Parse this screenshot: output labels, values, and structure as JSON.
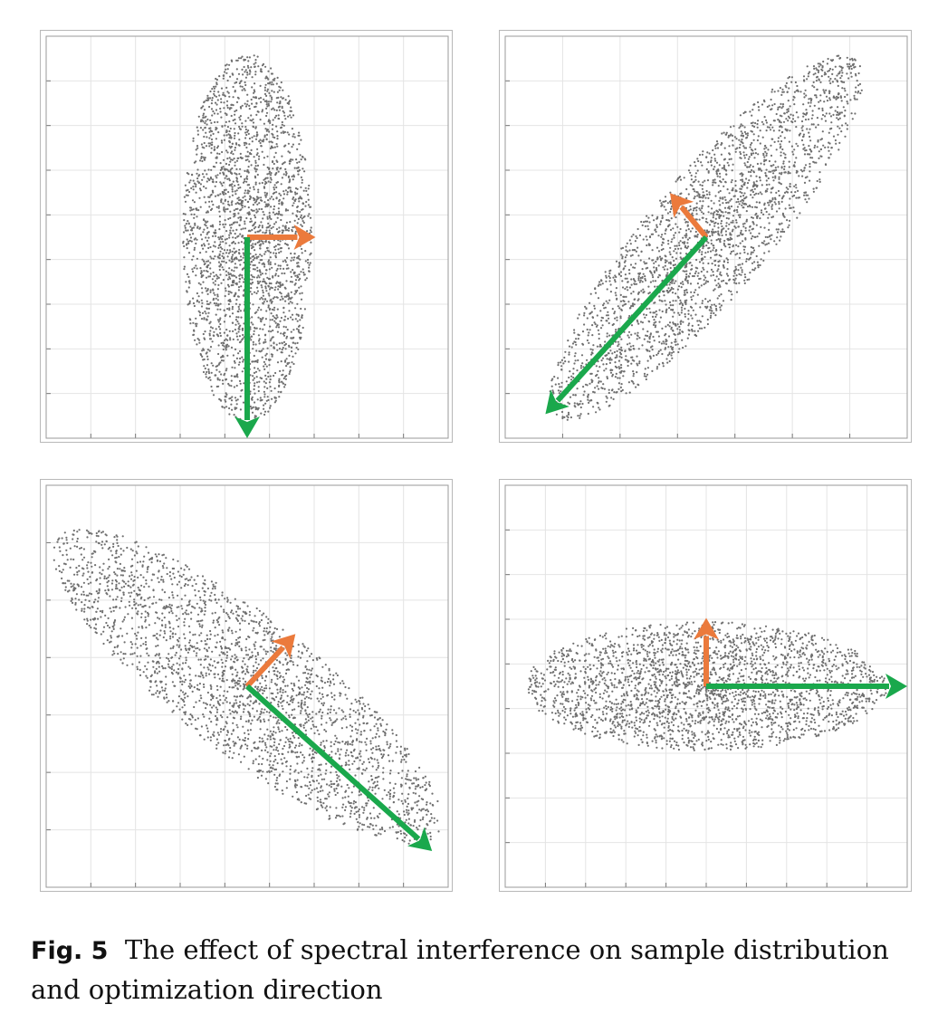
{
  "chart_data": [
    {
      "type": "scatter",
      "panel": "top-left",
      "grid": true,
      "x_gridlines": 8,
      "y_gridlines": 8,
      "distribution": {
        "center": [
          0.5,
          0.5
        ],
        "semi_major": 0.46,
        "semi_minor": 0.16,
        "angle_deg": 90,
        "n_points": 2600,
        "point_color": "#6f6f6f"
      },
      "arrows": [
        {
          "color": "#eb7a3c",
          "from": [
            0.5,
            0.5
          ],
          "to": [
            0.67,
            0.5
          ]
        },
        {
          "color": "#1aa84c",
          "from": [
            0.5,
            0.5
          ],
          "to": [
            0.5,
            0.0
          ]
        }
      ]
    },
    {
      "type": "scatter",
      "panel": "top-right",
      "grid": true,
      "x_gridlines": 6,
      "y_gridlines": 8,
      "distribution": {
        "center": [
          0.5,
          0.5
        ],
        "semi_major": 0.58,
        "semi_minor": 0.15,
        "angle_deg": 50,
        "n_points": 2600,
        "point_color": "#6f6f6f"
      },
      "arrows": [
        {
          "color": "#eb7a3c",
          "from": [
            0.5,
            0.5
          ],
          "to": [
            0.41,
            0.61
          ]
        },
        {
          "color": "#1aa84c",
          "from": [
            0.5,
            0.5
          ],
          "to": [
            0.1,
            0.06
          ]
        }
      ]
    },
    {
      "type": "scatter",
      "panel": "bottom-left",
      "grid": true,
      "x_gridlines": 8,
      "y_gridlines": 6,
      "distribution": {
        "center": [
          0.5,
          0.5
        ],
        "semi_major": 0.6,
        "semi_minor": 0.17,
        "angle_deg": -38,
        "n_points": 2600,
        "point_color": "#6f6f6f"
      },
      "arrows": [
        {
          "color": "#eb7a3c",
          "from": [
            0.5,
            0.5
          ],
          "to": [
            0.62,
            0.63
          ]
        },
        {
          "color": "#1aa84c",
          "from": [
            0.5,
            0.5
          ],
          "to": [
            0.96,
            0.09
          ]
        }
      ]
    },
    {
      "type": "scatter",
      "panel": "bottom-right",
      "grid": true,
      "x_gridlines": 9,
      "y_gridlines": 8,
      "distribution": {
        "center": [
          0.5,
          0.5
        ],
        "semi_major": 0.45,
        "semi_minor": 0.16,
        "angle_deg": 0,
        "n_points": 2600,
        "point_color": "#6f6f6f"
      },
      "arrows": [
        {
          "color": "#eb7a3c",
          "from": [
            0.5,
            0.5
          ],
          "to": [
            0.5,
            0.67
          ]
        },
        {
          "color": "#1aa84c",
          "from": [
            0.5,
            0.5
          ],
          "to": [
            1.0,
            0.5
          ]
        }
      ]
    }
  ],
  "caption": {
    "label": "Fig. 5",
    "text": "The effect of spectral interference on sample distribution and optimization direction"
  }
}
